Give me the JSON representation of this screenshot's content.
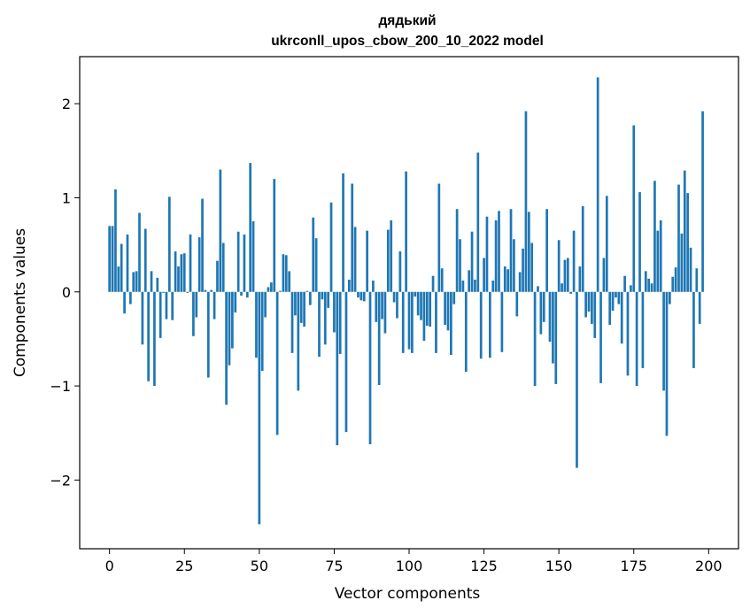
{
  "chart_data": {
    "type": "bar",
    "title": "дядький",
    "subtitle": "ukrconll_upos_cbow_200_10_2022 model",
    "xlabel": "Vector components",
    "ylabel": "Components values",
    "xlim": [
      -9.95,
      209.95
    ],
    "ylim": [
      -2.73,
      2.5
    ],
    "xticks": [
      0,
      25,
      50,
      75,
      100,
      125,
      150,
      175,
      200
    ],
    "yticks": [
      -2,
      -1,
      0,
      1,
      2
    ],
    "ytick_labels": [
      "−2",
      "−1",
      "0",
      "1",
      "2"
    ],
    "bar_color": "#1f77b4",
    "values": [
      0.7,
      0.7,
      1.09,
      0.27,
      0.51,
      -0.23,
      0.61,
      -0.13,
      0.21,
      0.22,
      0.84,
      -0.56,
      0.67,
      -0.95,
      0.22,
      -1.0,
      0.15,
      -0.49,
      -0.01,
      -0.29,
      1.01,
      -0.3,
      0.43,
      0.27,
      0.4,
      0.41,
      -0.01,
      0.61,
      -0.47,
      -0.27,
      0.58,
      0.99,
      0.02,
      -0.91,
      0.02,
      -0.29,
      0.33,
      1.3,
      0.52,
      -1.2,
      -0.78,
      -0.6,
      -0.22,
      0.64,
      -0.04,
      0.61,
      -0.06,
      1.37,
      0.75,
      -0.7,
      -2.47,
      -0.84,
      -0.27,
      0.05,
      0.1,
      1.2,
      -1.52,
      0.01,
      0.4,
      0.39,
      0.22,
      -0.65,
      -0.25,
      -1.05,
      -0.33,
      -0.37,
      0.01,
      -0.14,
      0.79,
      0.57,
      -0.69,
      -0.08,
      -0.56,
      -0.17,
      0.95,
      -0.43,
      -1.63,
      -0.66,
      1.26,
      -1.49,
      0.13,
      1.15,
      0.69,
      -0.06,
      -0.09,
      -0.1,
      0.65,
      -1.62,
      0.12,
      -0.32,
      -0.99,
      -0.29,
      -0.44,
      0.66,
      0.76,
      -0.11,
      -0.28,
      0.43,
      -0.65,
      1.28,
      -0.61,
      -0.65,
      -0.05,
      -0.25,
      -0.3,
      -0.52,
      -0.36,
      -0.37,
      0.17,
      -0.65,
      1.15,
      0.25,
      -0.35,
      -0.41,
      -0.67,
      -0.13,
      0.88,
      0.56,
      0.12,
      -0.85,
      0.23,
      0.64,
      0.13,
      1.48,
      -0.71,
      0.36,
      0.8,
      -0.7,
      0.12,
      0.76,
      0.86,
      -0.64,
      0.27,
      0.24,
      0.88,
      0.56,
      -0.26,
      0.21,
      0.46,
      1.92,
      0.85,
      0.52,
      -1.0,
      0.06,
      -0.45,
      -0.32,
      0.88,
      -0.53,
      -0.76,
      -0.98,
      0.55,
      0.09,
      0.34,
      0.36,
      -0.02,
      0.65,
      -1.87,
      0.27,
      0.91,
      -0.27,
      -0.21,
      -0.34,
      -0.49,
      2.28,
      -0.97,
      0.36,
      1.02,
      -0.35,
      -0.2,
      -0.06,
      -0.13,
      -0.55,
      0.17,
      -0.89,
      0.07,
      1.77,
      -1.0,
      1.06,
      -0.81,
      0.22,
      0.14,
      0.09,
      1.18,
      0.65,
      0.76,
      -1.05,
      -1.53,
      -0.13,
      0.16,
      0.26,
      1.14,
      0.62,
      1.29,
      1.05,
      0.47,
      -0.81,
      0.25,
      -0.34,
      1.92
    ]
  }
}
